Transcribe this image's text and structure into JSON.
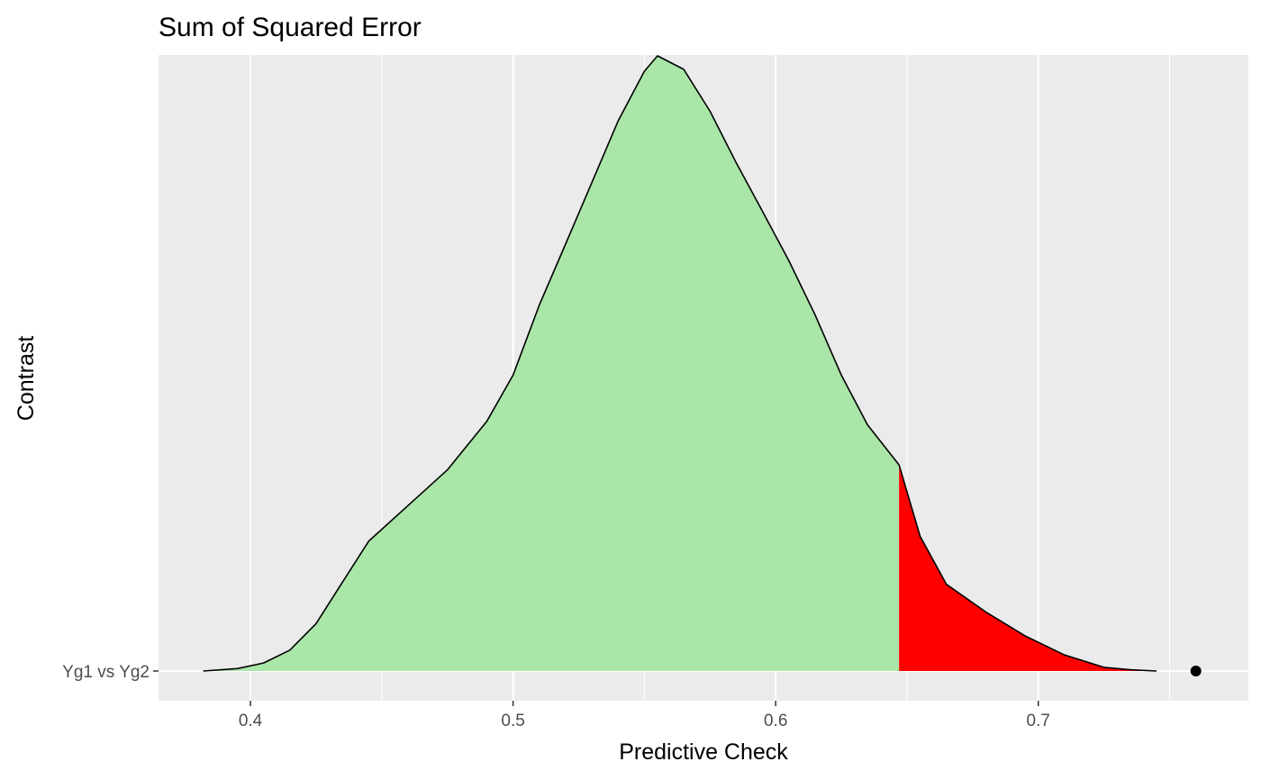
{
  "chart_data": {
    "type": "area",
    "title": "Sum of Squared Error",
    "xlabel": "Predictive Check",
    "ylabel": "Contrast",
    "xlim": [
      0.365,
      0.78
    ],
    "x_ticks": [
      0.4,
      0.5,
      0.6,
      0.7
    ],
    "x_tick_labels": [
      "0.4",
      "0.5",
      "0.6",
      "0.7"
    ],
    "y_categories": [
      "Yg1 vs Yg2"
    ],
    "grid": true,
    "threshold": 0.647,
    "observed_point": {
      "category": "Yg1 vs Yg2",
      "x": 0.76
    },
    "density_relative_max": 1.0,
    "density": [
      [
        0.382,
        0.0
      ],
      [
        0.395,
        0.004
      ],
      [
        0.405,
        0.013
      ],
      [
        0.415,
        0.034
      ],
      [
        0.425,
        0.077
      ],
      [
        0.435,
        0.144
      ],
      [
        0.445,
        0.211
      ],
      [
        0.46,
        0.269
      ],
      [
        0.475,
        0.327
      ],
      [
        0.49,
        0.406
      ],
      [
        0.5,
        0.481
      ],
      [
        0.51,
        0.595
      ],
      [
        0.52,
        0.694
      ],
      [
        0.53,
        0.794
      ],
      [
        0.54,
        0.894
      ],
      [
        0.55,
        0.975
      ],
      [
        0.555,
        1.0
      ],
      [
        0.565,
        0.978
      ],
      [
        0.575,
        0.91
      ],
      [
        0.585,
        0.826
      ],
      [
        0.595,
        0.747
      ],
      [
        0.605,
        0.667
      ],
      [
        0.615,
        0.579
      ],
      [
        0.625,
        0.481
      ],
      [
        0.635,
        0.4
      ],
      [
        0.647,
        0.335
      ],
      [
        0.655,
        0.219
      ],
      [
        0.665,
        0.141
      ],
      [
        0.68,
        0.096
      ],
      [
        0.695,
        0.057
      ],
      [
        0.71,
        0.026
      ],
      [
        0.725,
        0.006
      ],
      [
        0.735,
        0.002
      ],
      [
        0.745,
        0.0
      ]
    ],
    "fill_colors": {
      "below_threshold": "#aae6a8",
      "above_threshold": "#ff0000"
    },
    "panel_color": "#ebebeb",
    "grid_color": "#ffffff",
    "line_color": "#000000"
  }
}
